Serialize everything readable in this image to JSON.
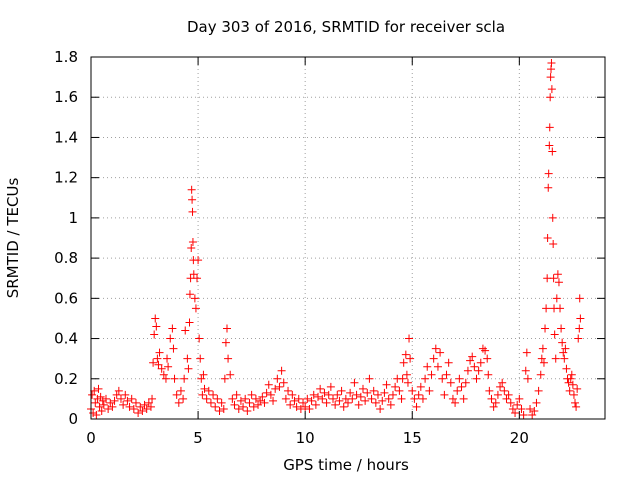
{
  "chart_data": {
    "type": "scatter",
    "title": "Day 303 of 2016, SRMTID for receiver scla",
    "xlabel": "GPS time / hours",
    "ylabel": "SRMTID / TECUs",
    "xlim": [
      0,
      24
    ],
    "ylim": [
      0,
      1.8
    ],
    "xticks": [
      0,
      5,
      10,
      15,
      20
    ],
    "xtick_labels": [
      "0",
      "5",
      "10",
      "15",
      "20"
    ],
    "yticks": [
      0,
      0.2,
      0.4,
      0.6,
      0.8,
      1,
      1.2,
      1.4,
      1.6,
      1.8
    ],
    "ytick_labels": [
      "0",
      "0.2",
      "0.4",
      "0.6",
      "0.8",
      "1",
      "1.2",
      "1.4",
      "1.6",
      "1.8"
    ],
    "grid": true,
    "marker": "+",
    "series": [
      {
        "name": "SRMTID",
        "color": "#ff0000",
        "points": [
          [
            0.0,
            0.05
          ],
          [
            0.05,
            0.12
          ],
          [
            0.1,
            0.03
          ],
          [
            0.15,
            0.14
          ],
          [
            0.2,
            0.08
          ],
          [
            0.25,
            0.02
          ],
          [
            0.3,
            0.1
          ],
          [
            0.35,
            0.15
          ],
          [
            0.4,
            0.06
          ],
          [
            0.45,
            0.11
          ],
          [
            0.5,
            0.04
          ],
          [
            0.55,
            0.09
          ],
          [
            0.6,
            0.07
          ],
          [
            0.7,
            0.1
          ],
          [
            0.8,
            0.05
          ],
          [
            0.9,
            0.08
          ],
          [
            1.0,
            0.06
          ],
          [
            1.1,
            0.09
          ],
          [
            1.2,
            0.12
          ],
          [
            1.3,
            0.14
          ],
          [
            1.4,
            0.1
          ],
          [
            1.5,
            0.07
          ],
          [
            1.6,
            0.12
          ],
          [
            1.7,
            0.09
          ],
          [
            1.8,
            0.06
          ],
          [
            1.9,
            0.1
          ],
          [
            2.0,
            0.05
          ],
          [
            2.1,
            0.08
          ],
          [
            2.2,
            0.03
          ],
          [
            2.3,
            0.06
          ],
          [
            2.4,
            0.04
          ],
          [
            2.5,
            0.07
          ],
          [
            2.6,
            0.05
          ],
          [
            2.7,
            0.08
          ],
          [
            2.8,
            0.06
          ],
          [
            2.85,
            0.1
          ],
          [
            2.9,
            0.28
          ],
          [
            2.95,
            0.42
          ],
          [
            3.0,
            0.5
          ],
          [
            3.05,
            0.46
          ],
          [
            3.1,
            0.3
          ],
          [
            3.15,
            0.27
          ],
          [
            3.2,
            0.33
          ],
          [
            3.3,
            0.25
          ],
          [
            3.4,
            0.22
          ],
          [
            3.5,
            0.2
          ],
          [
            3.55,
            0.3
          ],
          [
            3.6,
            0.26
          ],
          [
            3.7,
            0.4
          ],
          [
            3.8,
            0.45
          ],
          [
            3.85,
            0.35
          ],
          [
            3.9,
            0.2
          ],
          [
            4.0,
            0.12
          ],
          [
            4.1,
            0.08
          ],
          [
            4.2,
            0.14
          ],
          [
            4.3,
            0.1
          ],
          [
            4.35,
            0.2
          ],
          [
            4.4,
            0.44
          ],
          [
            4.5,
            0.3
          ],
          [
            4.55,
            0.25
          ],
          [
            4.6,
            0.48
          ],
          [
            4.62,
            0.62
          ],
          [
            4.65,
            0.7
          ],
          [
            4.68,
            0.85
          ],
          [
            4.7,
            1.14
          ],
          [
            4.72,
            1.09
          ],
          [
            4.74,
            1.03
          ],
          [
            4.76,
            0.88
          ],
          [
            4.78,
            0.79
          ],
          [
            4.8,
            0.72
          ],
          [
            4.85,
            0.6
          ],
          [
            4.9,
            0.55
          ],
          [
            4.95,
            0.7
          ],
          [
            5.0,
            0.79
          ],
          [
            5.05,
            0.4
          ],
          [
            5.1,
            0.3
          ],
          [
            5.15,
            0.2
          ],
          [
            5.2,
            0.12
          ],
          [
            5.25,
            0.22
          ],
          [
            5.3,
            0.15
          ],
          [
            5.4,
            0.1
          ],
          [
            5.5,
            0.14
          ],
          [
            5.6,
            0.08
          ],
          [
            5.7,
            0.12
          ],
          [
            5.8,
            0.06
          ],
          [
            5.9,
            0.1
          ],
          [
            6.0,
            0.04
          ],
          [
            6.1,
            0.08
          ],
          [
            6.2,
            0.05
          ],
          [
            6.25,
            0.2
          ],
          [
            6.3,
            0.38
          ],
          [
            6.35,
            0.45
          ],
          [
            6.4,
            0.3
          ],
          [
            6.5,
            0.22
          ],
          [
            6.6,
            0.1
          ],
          [
            6.7,
            0.07
          ],
          [
            6.8,
            0.12
          ],
          [
            6.9,
            0.05
          ],
          [
            7.0,
            0.09
          ],
          [
            7.1,
            0.06
          ],
          [
            7.2,
            0.1
          ],
          [
            7.3,
            0.04
          ],
          [
            7.4,
            0.08
          ],
          [
            7.5,
            0.12
          ],
          [
            7.6,
            0.06
          ],
          [
            7.7,
            0.1
          ],
          [
            7.8,
            0.07
          ],
          [
            7.9,
            0.09
          ],
          [
            8.0,
            0.11
          ],
          [
            8.1,
            0.08
          ],
          [
            8.2,
            0.13
          ],
          [
            8.3,
            0.17
          ],
          [
            8.4,
            0.12
          ],
          [
            8.5,
            0.09
          ],
          [
            8.6,
            0.15
          ],
          [
            8.7,
            0.2
          ],
          [
            8.8,
            0.16
          ],
          [
            8.9,
            0.24
          ],
          [
            9.0,
            0.18
          ],
          [
            9.1,
            0.1
          ],
          [
            9.2,
            0.14
          ],
          [
            9.3,
            0.07
          ],
          [
            9.4,
            0.12
          ],
          [
            9.5,
            0.09
          ],
          [
            9.6,
            0.06
          ],
          [
            9.7,
            0.1
          ],
          [
            9.8,
            0.05
          ],
          [
            9.9,
            0.08
          ],
          [
            10.0,
            0.06
          ],
          [
            10.1,
            0.1
          ],
          [
            10.2,
            0.05
          ],
          [
            10.3,
            0.09
          ],
          [
            10.4,
            0.12
          ],
          [
            10.5,
            0.07
          ],
          [
            10.6,
            0.11
          ],
          [
            10.7,
            0.15
          ],
          [
            10.8,
            0.1
          ],
          [
            10.9,
            0.13
          ],
          [
            11.0,
            0.08
          ],
          [
            11.1,
            0.12
          ],
          [
            11.2,
            0.16
          ],
          [
            11.3,
            0.1
          ],
          [
            11.4,
            0.07
          ],
          [
            11.5,
            0.12
          ],
          [
            11.6,
            0.09
          ],
          [
            11.7,
            0.14
          ],
          [
            11.8,
            0.06
          ],
          [
            11.9,
            0.1
          ],
          [
            12.0,
            0.08
          ],
          [
            12.1,
            0.13
          ],
          [
            12.2,
            0.1
          ],
          [
            12.3,
            0.18
          ],
          [
            12.4,
            0.12
          ],
          [
            12.5,
            0.07
          ],
          [
            12.6,
            0.11
          ],
          [
            12.7,
            0.15
          ],
          [
            12.8,
            0.09
          ],
          [
            12.9,
            0.13
          ],
          [
            13.0,
            0.2
          ],
          [
            13.1,
            0.1
          ],
          [
            13.2,
            0.14
          ],
          [
            13.3,
            0.08
          ],
          [
            13.4,
            0.12
          ],
          [
            13.5,
            0.05
          ],
          [
            13.6,
            0.09
          ],
          [
            13.7,
            0.13
          ],
          [
            13.8,
            0.17
          ],
          [
            13.9,
            0.1
          ],
          [
            14.0,
            0.07
          ],
          [
            14.1,
            0.12
          ],
          [
            14.2,
            0.16
          ],
          [
            14.3,
            0.2
          ],
          [
            14.4,
            0.14
          ],
          [
            14.5,
            0.1
          ],
          [
            14.55,
            0.2
          ],
          [
            14.6,
            0.28
          ],
          [
            14.7,
            0.32
          ],
          [
            14.75,
            0.22
          ],
          [
            14.8,
            0.18
          ],
          [
            14.85,
            0.4
          ],
          [
            14.9,
            0.3
          ],
          [
            15.0,
            0.14
          ],
          [
            15.1,
            0.1
          ],
          [
            15.2,
            0.06
          ],
          [
            15.3,
            0.12
          ],
          [
            15.4,
            0.16
          ],
          [
            15.5,
            0.1
          ],
          [
            15.6,
            0.2
          ],
          [
            15.7,
            0.26
          ],
          [
            15.8,
            0.14
          ],
          [
            15.9,
            0.22
          ],
          [
            16.0,
            0.3
          ],
          [
            16.1,
            0.35
          ],
          [
            16.2,
            0.26
          ],
          [
            16.3,
            0.33
          ],
          [
            16.4,
            0.2
          ],
          [
            16.5,
            0.12
          ],
          [
            16.6,
            0.22
          ],
          [
            16.7,
            0.28
          ],
          [
            16.8,
            0.18
          ],
          [
            16.9,
            0.1
          ],
          [
            17.0,
            0.08
          ],
          [
            17.1,
            0.14
          ],
          [
            17.2,
            0.2
          ],
          [
            17.3,
            0.16
          ],
          [
            17.4,
            0.1
          ],
          [
            17.5,
            0.18
          ],
          [
            17.6,
            0.24
          ],
          [
            17.7,
            0.29
          ],
          [
            17.8,
            0.31
          ],
          [
            17.9,
            0.26
          ],
          [
            18.0,
            0.2
          ],
          [
            18.1,
            0.24
          ],
          [
            18.2,
            0.28
          ],
          [
            18.3,
            0.35
          ],
          [
            18.4,
            0.34
          ],
          [
            18.5,
            0.3
          ],
          [
            18.55,
            0.22
          ],
          [
            18.6,
            0.14
          ],
          [
            18.7,
            0.1
          ],
          [
            18.8,
            0.06
          ],
          [
            18.9,
            0.08
          ],
          [
            19.0,
            0.12
          ],
          [
            19.1,
            0.16
          ],
          [
            19.2,
            0.18
          ],
          [
            19.3,
            0.14
          ],
          [
            19.4,
            0.1
          ],
          [
            19.5,
            0.12
          ],
          [
            19.6,
            0.08
          ],
          [
            19.7,
            0.05
          ],
          [
            19.8,
            0.03
          ],
          [
            19.9,
            0.07
          ],
          [
            20.0,
            0.1
          ],
          [
            20.1,
            0.05
          ],
          [
            20.2,
            0.02
          ],
          [
            20.3,
            0.24
          ],
          [
            20.35,
            0.33
          ],
          [
            20.4,
            0.2
          ],
          [
            20.5,
            0.05
          ],
          [
            20.6,
            0.02
          ],
          [
            20.7,
            0.04
          ],
          [
            20.8,
            0.08
          ],
          [
            20.9,
            0.14
          ],
          [
            21.0,
            0.22
          ],
          [
            21.05,
            0.3
          ],
          [
            21.1,
            0.35
          ],
          [
            21.15,
            0.28
          ],
          [
            21.2,
            0.45
          ],
          [
            21.25,
            0.55
          ],
          [
            21.3,
            0.7
          ],
          [
            21.32,
            0.9
          ],
          [
            21.35,
            1.15
          ],
          [
            21.37,
            1.22
          ],
          [
            21.4,
            1.36
          ],
          [
            21.42,
            1.45
          ],
          [
            21.44,
            1.6
          ],
          [
            21.46,
            1.7
          ],
          [
            21.48,
            1.74
          ],
          [
            21.5,
            1.77
          ],
          [
            21.52,
            1.64
          ],
          [
            21.54,
            1.33
          ],
          [
            21.56,
            1.0
          ],
          [
            21.58,
            0.87
          ],
          [
            21.6,
            0.7
          ],
          [
            21.62,
            0.55
          ],
          [
            21.65,
            0.42
          ],
          [
            21.7,
            0.3
          ],
          [
            21.75,
            0.6
          ],
          [
            21.8,
            0.72
          ],
          [
            21.85,
            0.68
          ],
          [
            21.9,
            0.55
          ],
          [
            21.95,
            0.45
          ],
          [
            22.0,
            0.38
          ],
          [
            22.05,
            0.33
          ],
          [
            22.1,
            0.3
          ],
          [
            22.15,
            0.35
          ],
          [
            22.2,
            0.25
          ],
          [
            22.25,
            0.2
          ],
          [
            22.3,
            0.18
          ],
          [
            22.35,
            0.14
          ],
          [
            22.4,
            0.2
          ],
          [
            22.45,
            0.22
          ],
          [
            22.5,
            0.17
          ],
          [
            22.55,
            0.12
          ],
          [
            22.6,
            0.08
          ],
          [
            22.65,
            0.06
          ],
          [
            22.7,
            0.15
          ],
          [
            22.75,
            0.4
          ],
          [
            22.8,
            0.45
          ],
          [
            22.82,
            0.6
          ],
          [
            22.85,
            0.5
          ]
        ]
      }
    ]
  }
}
